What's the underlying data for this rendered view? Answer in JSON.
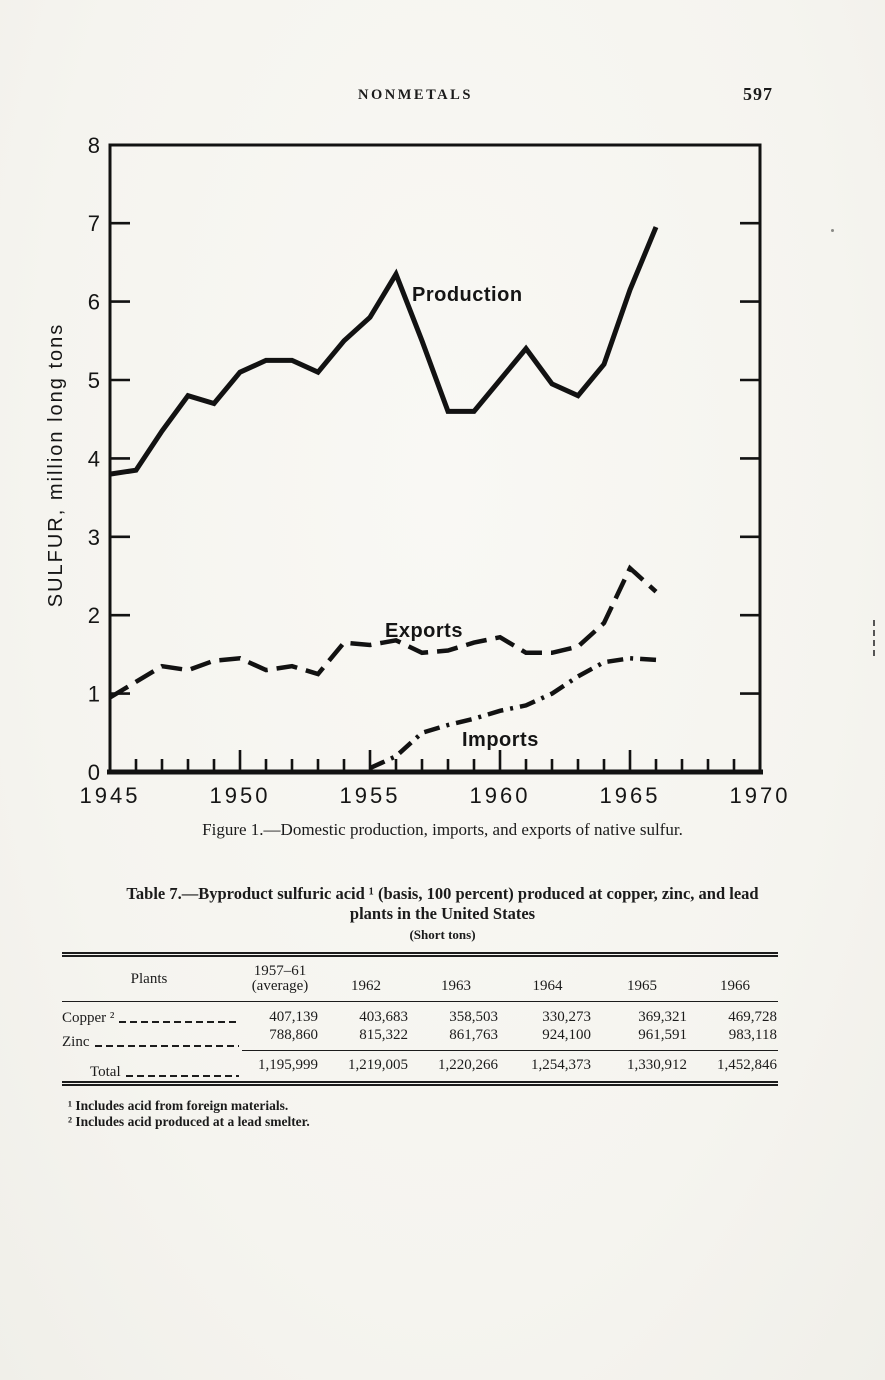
{
  "header": {
    "running_title": "NONMETALS",
    "page_number": "597"
  },
  "figure": {
    "caption": "Figure 1.—Domestic production, imports, and exports of native sulfur."
  },
  "chart_data": {
    "type": "line",
    "title": "",
    "xlabel": "",
    "ylabel": "SULFUR, million long tons",
    "xlim": [
      1945,
      1970
    ],
    "ylim": [
      0,
      8
    ],
    "x_ticks": [
      1945,
      1950,
      1955,
      1960,
      1965,
      1970
    ],
    "y_ticks": [
      0,
      1,
      2,
      3,
      4,
      5,
      6,
      7,
      8
    ],
    "grid": false,
    "legend_position": "inline-labels",
    "line_color": "#121212",
    "series": [
      {
        "name": "Production",
        "style": "solid",
        "x": [
          1945,
          1946,
          1947,
          1948,
          1949,
          1950,
          1951,
          1952,
          1953,
          1954,
          1955,
          1956,
          1957,
          1958,
          1959,
          1960,
          1961,
          1962,
          1963,
          1964,
          1965,
          1966
        ],
        "values": [
          3.8,
          3.85,
          4.35,
          4.8,
          4.7,
          5.1,
          5.25,
          5.25,
          5.1,
          5.5,
          5.8,
          6.35,
          5.5,
          4.6,
          4.6,
          5.0,
          5.4,
          4.95,
          4.8,
          5.2,
          6.15,
          6.95
        ]
      },
      {
        "name": "Exports",
        "style": "dashed",
        "x": [
          1945,
          1946,
          1947,
          1948,
          1949,
          1950,
          1951,
          1952,
          1953,
          1954,
          1955,
          1956,
          1957,
          1958,
          1959,
          1960,
          1961,
          1962,
          1963,
          1964,
          1965,
          1966
        ],
        "values": [
          0.95,
          1.15,
          1.35,
          1.3,
          1.42,
          1.45,
          1.3,
          1.35,
          1.25,
          1.65,
          1.62,
          1.68,
          1.52,
          1.55,
          1.65,
          1.72,
          1.52,
          1.52,
          1.6,
          1.9,
          2.6,
          2.3
        ]
      },
      {
        "name": "Imports",
        "style": "dashdot",
        "x": [
          1955,
          1956,
          1957,
          1958,
          1959,
          1960,
          1961,
          1962,
          1963,
          1964,
          1965,
          1966
        ],
        "values": [
          0.05,
          0.2,
          0.5,
          0.6,
          0.68,
          0.78,
          0.85,
          1.0,
          1.22,
          1.4,
          1.45,
          1.43
        ]
      }
    ]
  },
  "table": {
    "title_line1": "Table 7.—Byproduct sulfuric acid ¹ (basis, 100 percent) produced at copper, zinc, and lead",
    "title_line2": "plants in the United States",
    "unit_note": "(Short tons)",
    "headers": {
      "plants": "Plants",
      "avg_line1": "1957–61",
      "avg_line2": "(average)",
      "y1962": "1962",
      "y1963": "1963",
      "y1964": "1964",
      "y1965": "1965",
      "y1966": "1966"
    },
    "rows": [
      {
        "label": "Copper ²",
        "values": [
          "407,139",
          "403,683",
          "358,503",
          "330,273",
          "369,321",
          "469,728"
        ]
      },
      {
        "label": "Zinc",
        "values": [
          "788,860",
          "815,322",
          "861,763",
          "924,100",
          "961,591",
          "983,118"
        ]
      }
    ],
    "total_row": {
      "label": "Total",
      "values": [
        "1,195,999",
        "1,219,005",
        "1,220,266",
        "1,254,373",
        "1,330,912",
        "1,452,846"
      ]
    },
    "footnotes": [
      "¹ Includes acid from foreign materials.",
      "² Includes acid produced at a lead smelter."
    ]
  }
}
